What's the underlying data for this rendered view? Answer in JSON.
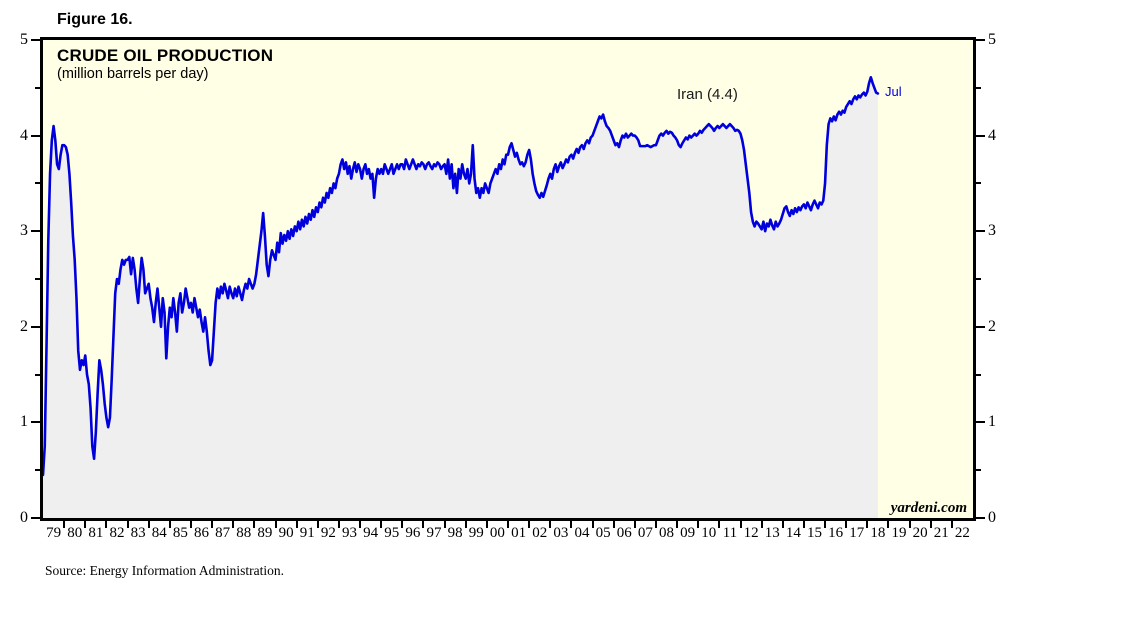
{
  "figure_label": "Figure 16.",
  "source": "Source: Energy Information Administration.",
  "watermark": "yardeni.com",
  "colors": {
    "line": "#0000DD",
    "area_fill": "#EFEFEF",
    "plot_background": "#FFFFE6",
    "border": "#000000",
    "annotation_text": "#1A1A1A",
    "last_label_text": "#0000DD"
  },
  "chart_data": {
    "type": "area",
    "title": "CRUDE OIL PRODUCTION",
    "subtitle": "(million barrels per day)",
    "series_annotation": "Iran (4.4)",
    "last_point_label": "Jul",
    "last_value": 4.4,
    "frequency": "monthly",
    "start_month": "1979-01",
    "end_month": "2018-07",
    "x_axis_start_year": 1979,
    "x_axis_end_year": 2023,
    "ylim": [
      0,
      5
    ],
    "y_major_ticks": [
      0,
      1,
      2,
      3,
      4,
      5
    ],
    "y_minor_ticks": [
      0.5,
      1.5,
      2.5,
      3.5,
      4.5
    ],
    "grid": false,
    "legend_position": "none",
    "x_tick_labels": [
      "79",
      "80",
      "81",
      "82",
      "83",
      "84",
      "85",
      "86",
      "87",
      "88",
      "89",
      "90",
      "91",
      "92",
      "93",
      "94",
      "95",
      "96",
      "97",
      "98",
      "99",
      "00",
      "01",
      "02",
      "03",
      "04",
      "05",
      "06",
      "07",
      "08",
      "09",
      "10",
      "11",
      "12",
      "13",
      "14",
      "15",
      "16",
      "17",
      "18",
      "19",
      "20",
      "21",
      "22"
    ],
    "values": [
      0.45,
      0.75,
      1.8,
      2.9,
      3.6,
      3.95,
      4.1,
      3.95,
      3.7,
      3.65,
      3.8,
      3.9,
      3.9,
      3.88,
      3.8,
      3.6,
      3.3,
      2.95,
      2.7,
      2.3,
      1.75,
      1.55,
      1.65,
      1.6,
      1.7,
      1.5,
      1.4,
      1.15,
      0.75,
      0.62,
      0.9,
      1.3,
      1.65,
      1.55,
      1.4,
      1.2,
      1.05,
      0.95,
      1.05,
      1.45,
      1.9,
      2.35,
      2.5,
      2.45,
      2.6,
      2.7,
      2.65,
      2.7,
      2.7,
      2.73,
      2.55,
      2.72,
      2.6,
      2.4,
      2.25,
      2.5,
      2.72,
      2.6,
      2.35,
      2.4,
      2.45,
      2.3,
      2.2,
      2.05,
      2.25,
      2.4,
      2.2,
      2.0,
      2.3,
      2.15,
      1.67,
      2.0,
      2.2,
      2.1,
      2.3,
      2.15,
      1.95,
      2.25,
      2.35,
      2.15,
      2.25,
      2.4,
      2.3,
      2.2,
      2.25,
      2.15,
      2.3,
      2.2,
      2.1,
      2.18,
      2.05,
      1.95,
      2.1,
      1.95,
      1.75,
      1.6,
      1.65,
      1.95,
      2.25,
      2.4,
      2.3,
      2.42,
      2.35,
      2.45,
      2.38,
      2.3,
      2.42,
      2.35,
      2.3,
      2.4,
      2.32,
      2.42,
      2.35,
      2.28,
      2.38,
      2.45,
      2.4,
      2.5,
      2.45,
      2.4,
      2.45,
      2.55,
      2.7,
      2.85,
      3.0,
      3.19,
      2.95,
      2.65,
      2.53,
      2.7,
      2.8,
      2.75,
      2.7,
      2.88,
      2.78,
      2.98,
      2.87,
      2.96,
      2.9,
      3.0,
      2.92,
      3.02,
      2.95,
      3.05,
      3.0,
      3.1,
      3.02,
      3.12,
      3.05,
      3.15,
      3.08,
      3.18,
      3.12,
      3.22,
      3.15,
      3.25,
      3.2,
      3.3,
      3.25,
      3.35,
      3.3,
      3.4,
      3.35,
      3.45,
      3.4,
      3.5,
      3.45,
      3.55,
      3.6,
      3.7,
      3.75,
      3.65,
      3.72,
      3.6,
      3.68,
      3.55,
      3.65,
      3.72,
      3.62,
      3.7,
      3.65,
      3.55,
      3.65,
      3.7,
      3.6,
      3.65,
      3.55,
      3.6,
      3.35,
      3.55,
      3.65,
      3.6,
      3.65,
      3.6,
      3.7,
      3.65,
      3.6,
      3.65,
      3.7,
      3.6,
      3.65,
      3.7,
      3.65,
      3.7,
      3.7,
      3.65,
      3.75,
      3.7,
      3.65,
      3.7,
      3.75,
      3.7,
      3.65,
      3.7,
      3.68,
      3.72,
      3.7,
      3.65,
      3.7,
      3.72,
      3.68,
      3.65,
      3.7,
      3.68,
      3.72,
      3.7,
      3.65,
      3.68,
      3.7,
      3.6,
      3.75,
      3.55,
      3.7,
      3.45,
      3.6,
      3.4,
      3.65,
      3.55,
      3.7,
      3.6,
      3.55,
      3.65,
      3.5,
      3.6,
      3.9,
      3.55,
      3.4,
      3.45,
      3.35,
      3.45,
      3.4,
      3.5,
      3.45,
      3.4,
      3.5,
      3.55,
      3.6,
      3.65,
      3.6,
      3.7,
      3.65,
      3.75,
      3.7,
      3.8,
      3.8,
      3.88,
      3.92,
      3.85,
      3.78,
      3.82,
      3.75,
      3.7,
      3.72,
      3.68,
      3.72,
      3.8,
      3.85,
      3.75,
      3.6,
      3.5,
      3.42,
      3.38,
      3.35,
      3.4,
      3.36,
      3.42,
      3.48,
      3.55,
      3.6,
      3.55,
      3.65,
      3.7,
      3.62,
      3.68,
      3.72,
      3.66,
      3.7,
      3.75,
      3.72,
      3.78,
      3.8,
      3.76,
      3.82,
      3.86,
      3.82,
      3.88,
      3.9,
      3.86,
      3.92,
      3.95,
      3.92,
      3.98,
      4.0,
      4.05,
      4.1,
      4.15,
      4.2,
      4.18,
      4.22,
      4.15,
      4.1,
      4.08,
      4.05,
      4.0,
      3.95,
      3.9,
      3.92,
      3.88,
      3.95,
      4.0,
      3.98,
      4.02,
      3.98,
      4.0,
      4.02,
      4.0,
      4.0,
      3.98,
      3.95,
      3.89,
      3.89,
      3.89,
      3.89,
      3.9,
      3.89,
      3.88,
      3.89,
      3.9,
      3.9,
      3.95,
      4.0,
      4.02,
      4.0,
      4.03,
      4.05,
      4.02,
      4.04,
      4.03,
      4.0,
      3.98,
      3.95,
      3.9,
      3.88,
      3.92,
      3.95,
      3.98,
      3.96,
      4.0,
      3.98,
      4.0,
      4.02,
      4.0,
      4.02,
      4.05,
      4.03,
      4.06,
      4.08,
      4.1,
      4.12,
      4.1,
      4.08,
      4.05,
      4.08,
      4.1,
      4.08,
      4.1,
      4.12,
      4.1,
      4.08,
      4.1,
      4.12,
      4.1,
      4.08,
      4.05,
      4.06,
      4.05,
      4.02,
      3.95,
      3.85,
      3.7,
      3.55,
      3.4,
      3.2,
      3.1,
      3.05,
      3.1,
      3.08,
      3.05,
      3.02,
      3.1,
      3.0,
      3.08,
      3.05,
      3.12,
      3.06,
      3.02,
      3.1,
      3.05,
      3.08,
      3.12,
      3.18,
      3.24,
      3.26,
      3.2,
      3.16,
      3.22,
      3.18,
      3.24,
      3.2,
      3.25,
      3.22,
      3.26,
      3.28,
      3.24,
      3.3,
      3.26,
      3.22,
      3.28,
      3.32,
      3.28,
      3.24,
      3.3,
      3.28,
      3.32,
      3.5,
      3.9,
      4.12,
      4.18,
      4.15,
      4.2,
      4.16,
      4.22,
      4.25,
      4.22,
      4.26,
      4.24,
      4.3,
      4.33,
      4.36,
      4.33,
      4.38,
      4.41,
      4.38,
      4.42,
      4.4,
      4.43,
      4.45,
      4.42,
      4.46,
      4.55,
      4.61,
      4.55,
      4.5,
      4.45,
      4.44
    ]
  }
}
